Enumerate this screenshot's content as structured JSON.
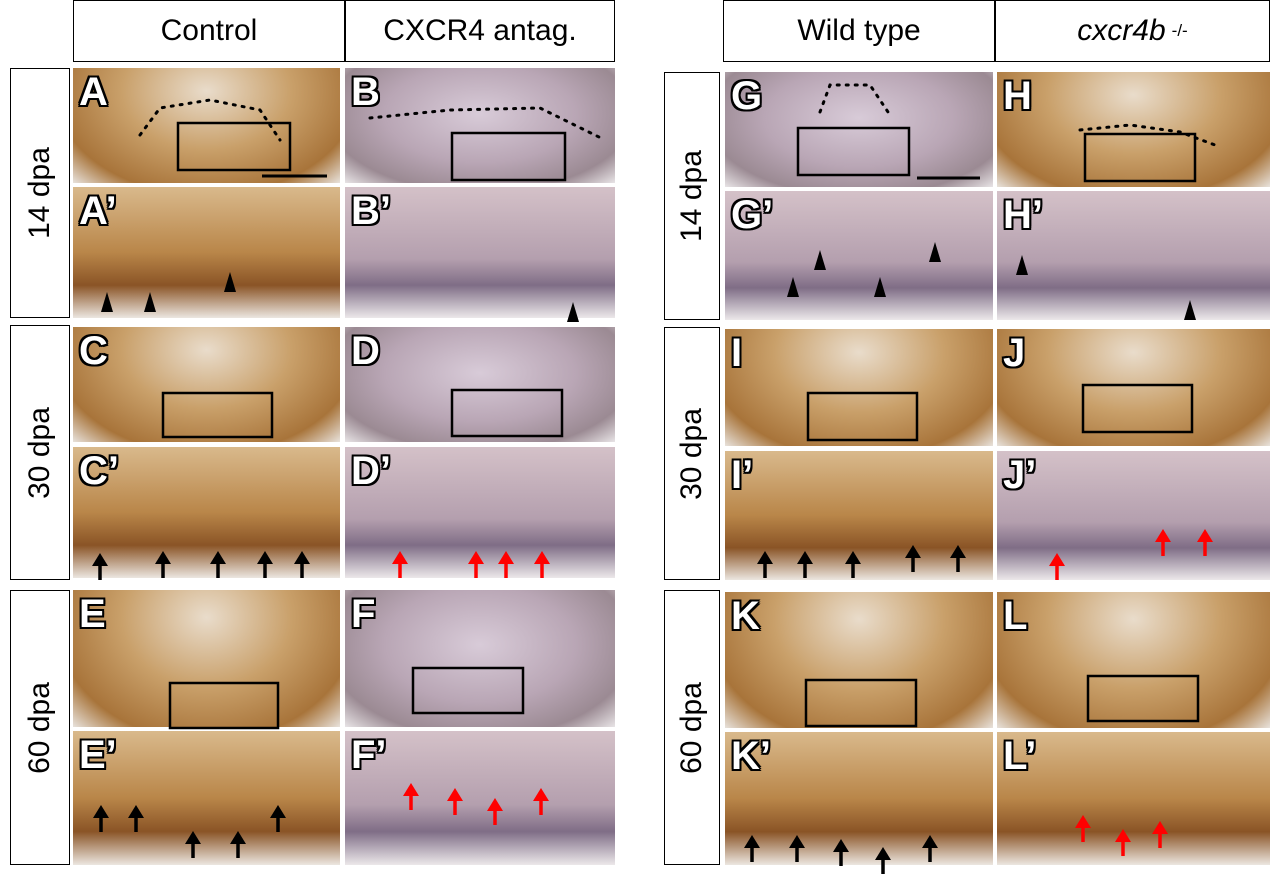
{
  "left_figure": {
    "column_headers": [
      "Control",
      "CXCR4 antag."
    ],
    "row_labels": [
      "14 dpa",
      "30 dpa",
      "60 dpa"
    ],
    "panel_labels": [
      [
        "A",
        "B"
      ],
      [
        "A’",
        "B’"
      ],
      [
        "C",
        "D"
      ],
      [
        "C’",
        "D’"
      ],
      [
        "E",
        "F"
      ],
      [
        "E’",
        "F’"
      ]
    ]
  },
  "right_figure": {
    "column_headers": [
      "Wild type",
      {
        "gene": "cxcr4b",
        "superscript": "-/-"
      }
    ],
    "row_labels": [
      "14 dpa",
      "30 dpa",
      "60 dpa"
    ],
    "panel_labels": [
      [
        "G",
        "H"
      ],
      [
        "G’",
        "H’"
      ],
      [
        "I",
        "J"
      ],
      [
        "I’",
        "J’"
      ],
      [
        "K",
        "L"
      ],
      [
        "K’",
        "L’"
      ]
    ]
  }
}
